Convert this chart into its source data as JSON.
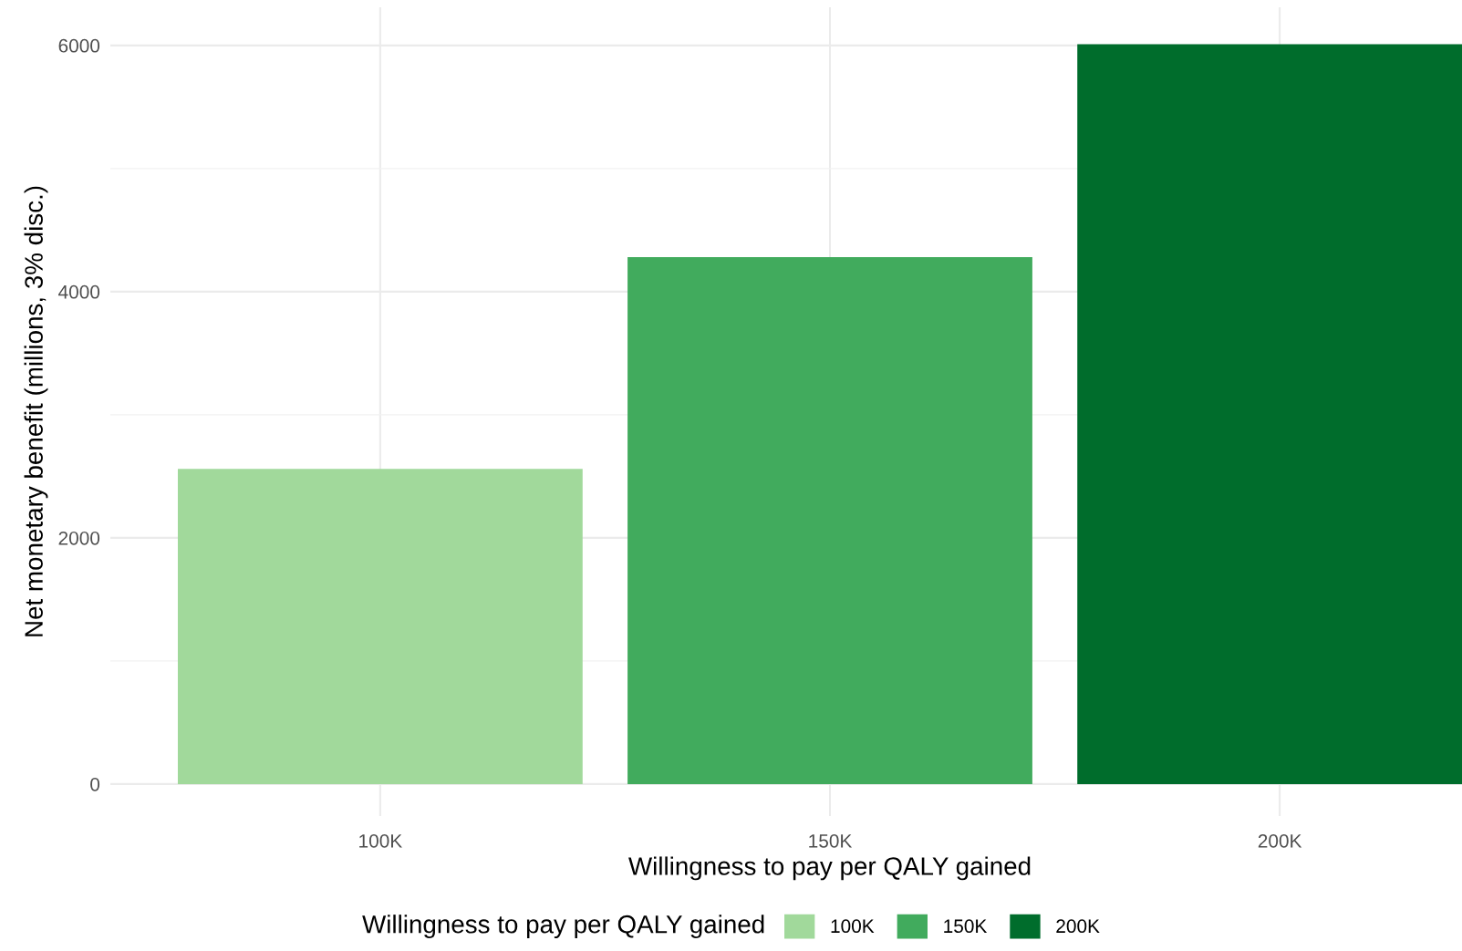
{
  "chart_data": {
    "type": "bar",
    "xlabel": "Willingness to pay per QALY gained",
    "ylabel": "Net monetary benefit (millions, 3% disc.)",
    "legend_title": "Willingness to pay per QALY gained",
    "categories": [
      "100K",
      "150K",
      "200K"
    ],
    "series": [
      {
        "name": "100K",
        "color": "#a1d99b",
        "values": [
          2560,
          null,
          null
        ]
      },
      {
        "name": "150K",
        "color": "#41ab5d",
        "values": [
          null,
          4280,
          null
        ]
      },
      {
        "name": "200K",
        "color": "#006d2c",
        "values": [
          null,
          null,
          6010
        ]
      }
    ],
    "ylim": [
      -260,
      6310
    ],
    "yticks": [
      0,
      2000,
      4000,
      6000
    ],
    "grid": true,
    "legend": "bottom"
  }
}
